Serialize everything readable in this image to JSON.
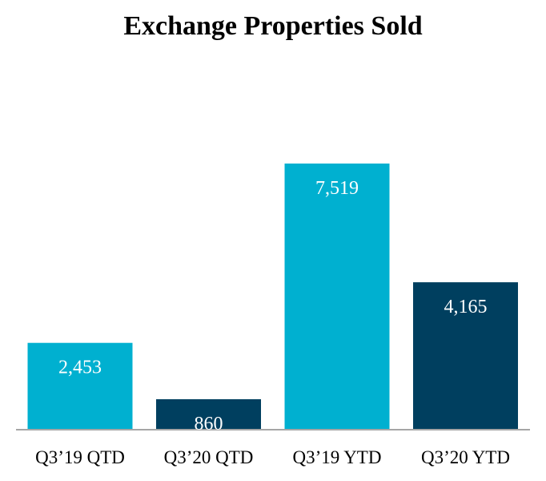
{
  "chart_data": {
    "type": "bar",
    "title": "Exchange Properties Sold",
    "xlabel": "",
    "ylabel": "",
    "categories": [
      "Q3’19 QTD",
      "Q3’20 QTD",
      "Q3’19 YTD",
      "Q3’20 YTD"
    ],
    "values": [
      2453,
      860,
      7519,
      4165
    ],
    "value_labels": [
      "2,453",
      "860",
      "7,519",
      "4,165"
    ],
    "ylim": [
      0,
      7519
    ],
    "grid": false,
    "legend": "none",
    "colors": [
      "#00b0d0",
      "#003f5f",
      "#00b0d0",
      "#003f5f"
    ]
  }
}
